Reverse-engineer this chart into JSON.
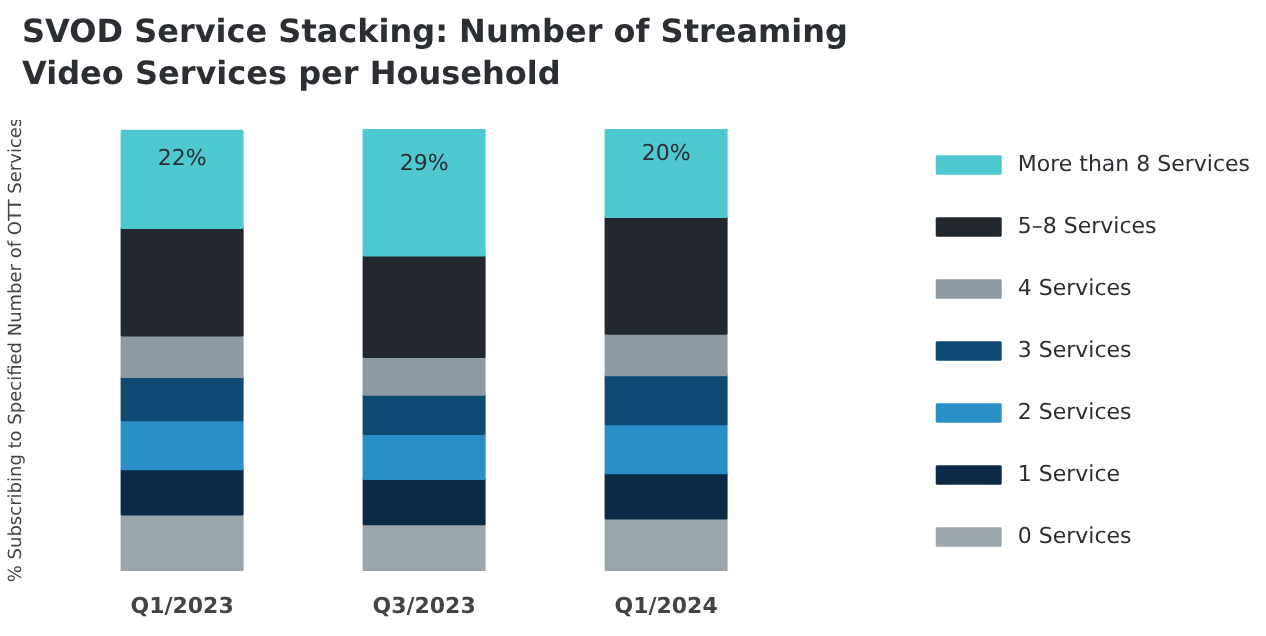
{
  "chart_data": {
    "type": "bar",
    "title": "SVOD Service Stacking: Number of Streaming Video Services per Household",
    "ylabel": "% Subscribing to Specified Number of OTT Services",
    "categories": [
      "Q1/2023",
      "Q3/2023",
      "Q1/2024"
    ],
    "stacked": true,
    "ylim": [
      0,
      100
    ],
    "legend": "right",
    "grid": false,
    "tick_labels": "x",
    "series": [
      {
        "name": "0 Services",
        "color": "#9ba5ac",
        "values": [
          12.8,
          10.6,
          11.9
        ]
      },
      {
        "name": "1 Service",
        "color": "#0c2a47",
        "values": [
          10.2,
          10.2,
          10.2
        ]
      },
      {
        "name": "2 Services",
        "color": "#2a8fc7",
        "values": [
          11.1,
          10.2,
          11.1
        ]
      },
      {
        "name": "3 Services",
        "color": "#0f4a72",
        "values": [
          9.8,
          8.9,
          11.1
        ]
      },
      {
        "name": "4 Services",
        "color": "#8d9aa3",
        "values": [
          9.4,
          8.5,
          9.4
        ]
      },
      {
        "name": "5–8 Services",
        "color": "#22282e",
        "values": [
          24.3,
          23,
          26.4
        ]
      },
      {
        "name": "More than 8 Services",
        "color": "#4fc8d0",
        "values": [
          22,
          29,
          20
        ],
        "value_labels": [
          "22%",
          "29%",
          "20%"
        ]
      }
    ]
  }
}
